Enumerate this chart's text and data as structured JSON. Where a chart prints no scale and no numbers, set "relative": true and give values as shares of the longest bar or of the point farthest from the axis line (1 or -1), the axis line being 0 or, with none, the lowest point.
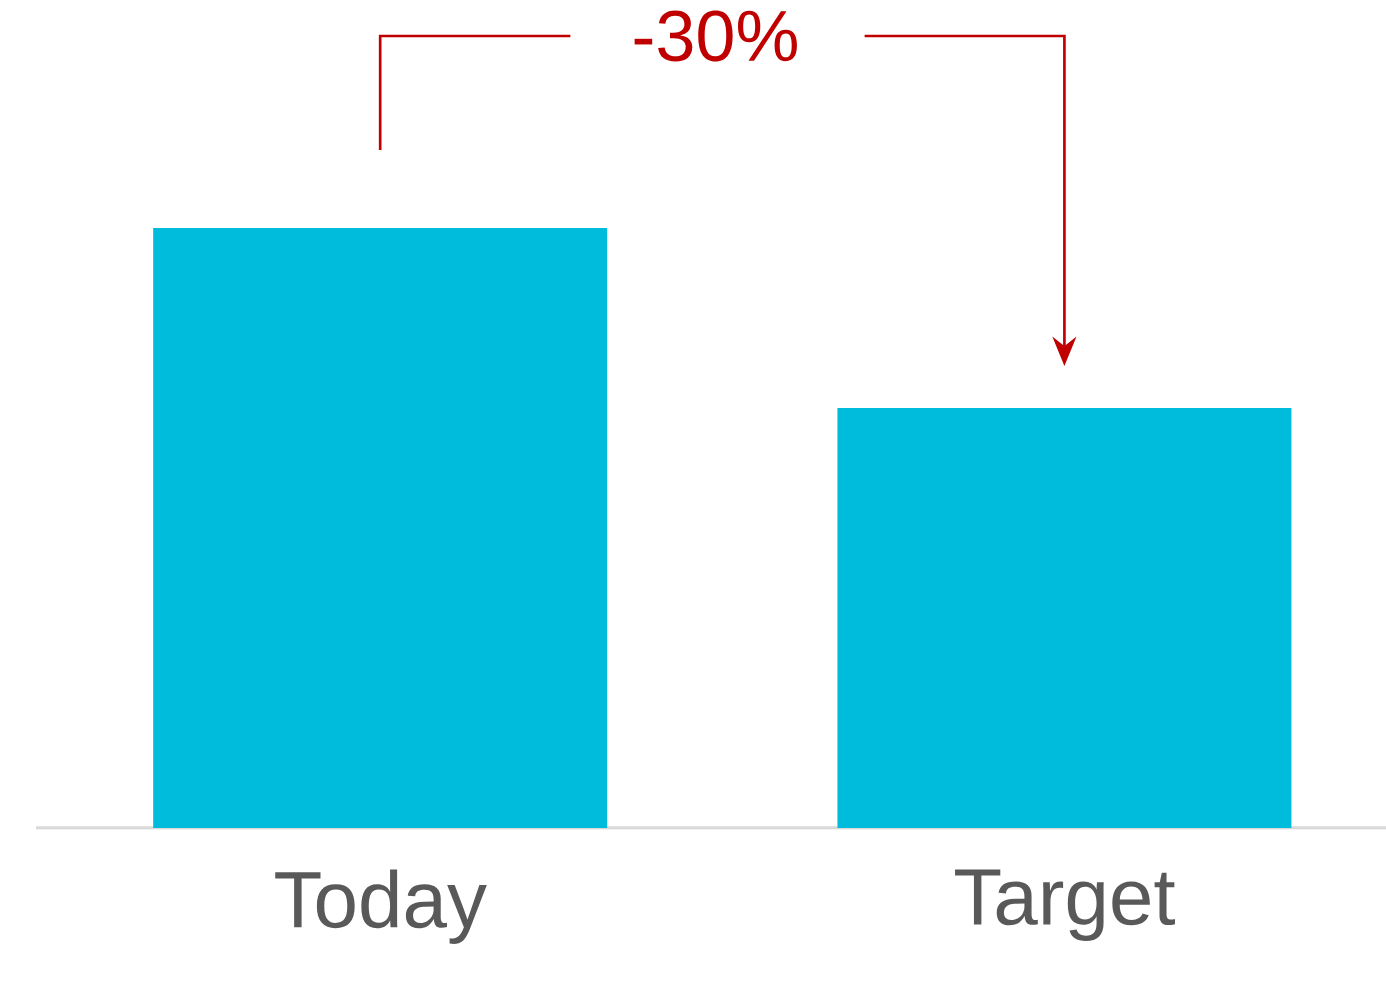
{
  "chart_data": {
    "type": "bar",
    "relative": true,
    "categories": [
      "Today",
      "Target"
    ],
    "values": [
      1,
      0.7
    ],
    "color": "#00bcdc",
    "annotations": [
      "-30%"
    ]
  }
}
